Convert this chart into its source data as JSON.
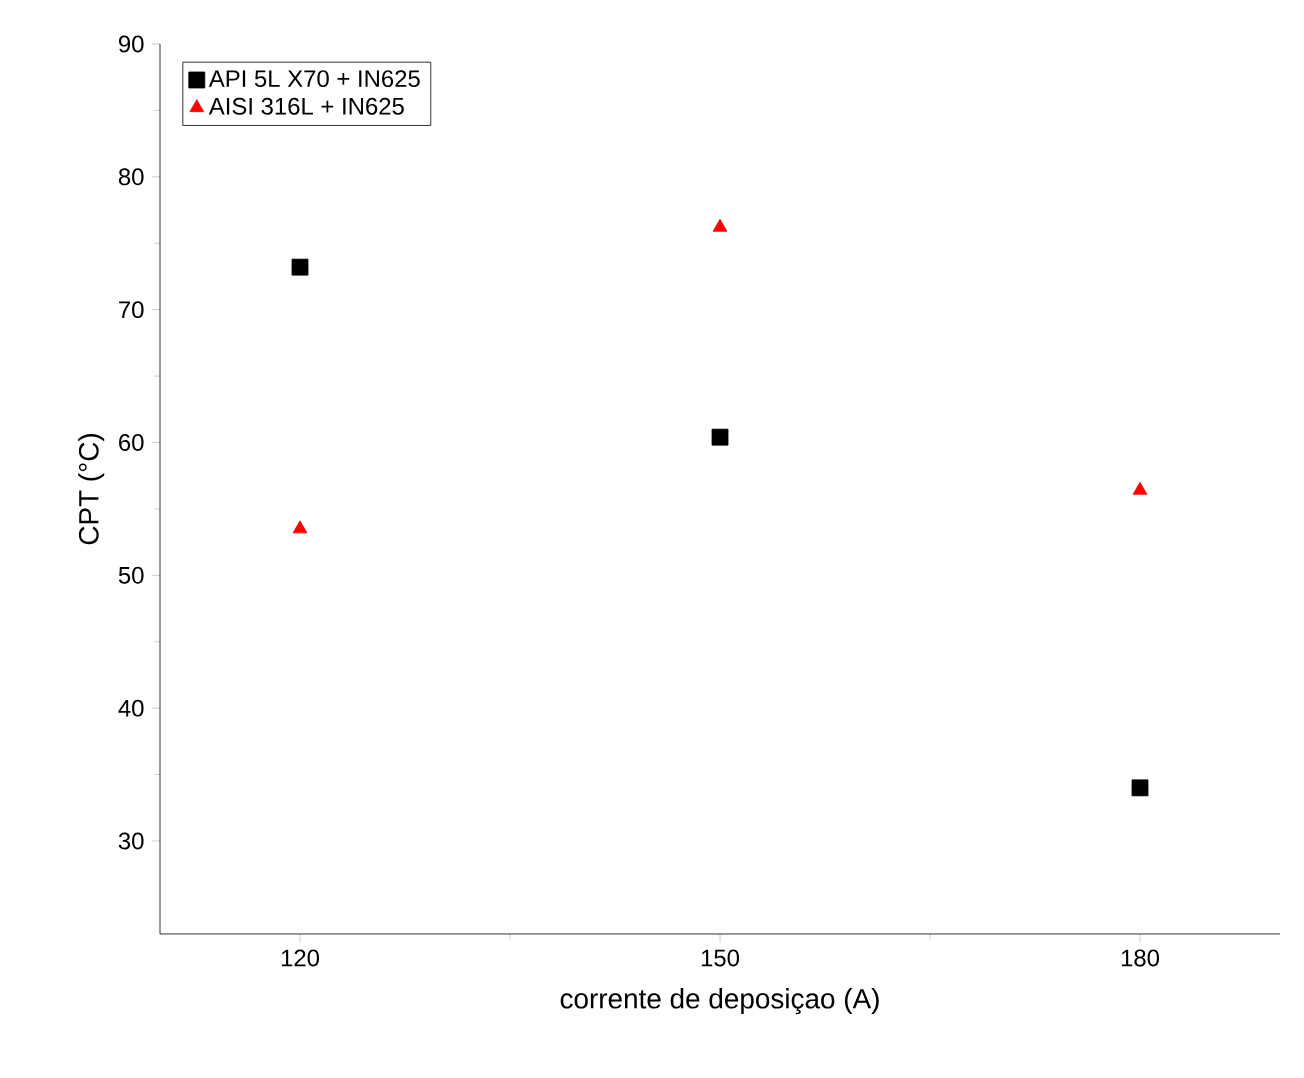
{
  "chart_data": {
    "type": "scatter",
    "xlabel": "corrente de deposiçao (A)",
    "ylabel": "CPT (°C)",
    "x": [
      120,
      150,
      180
    ],
    "series": [
      {
        "name": "API 5L X70 + IN625",
        "color": "#000000",
        "marker": "square",
        "values": [
          73.2,
          60.4,
          34.0
        ]
      },
      {
        "name": "AISI 316L  + IN625",
        "color": "#ff0000",
        "marker": "triangle",
        "values": [
          53.5,
          76.2,
          56.4
        ]
      }
    ],
    "xlim": [
      110,
      190
    ],
    "xticks": [
      120,
      150,
      180
    ],
    "ylim": [
      23,
      90
    ],
    "yticks": [
      30,
      40,
      50,
      60,
      70,
      80,
      90
    ],
    "grid": false,
    "legend": "top left"
  }
}
